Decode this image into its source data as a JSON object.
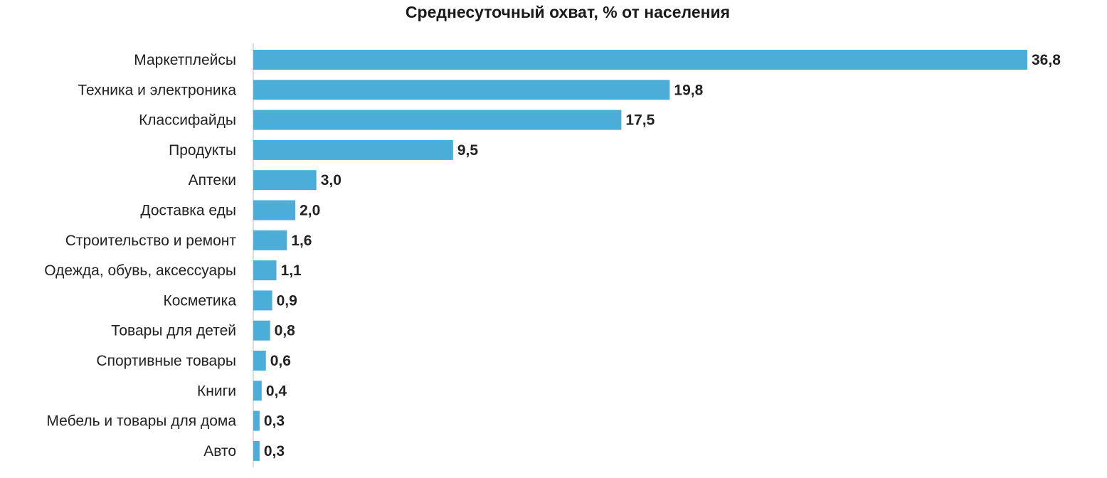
{
  "chart_data": {
    "type": "bar",
    "orientation": "horizontal",
    "title": "Среднесуточный охват, % от населения",
    "xlabel": "",
    "ylabel": "",
    "categories": [
      "Маркетплейсы",
      "Техника и электроника",
      "Классифайды",
      "Продукты",
      "Аптеки",
      "Доставка еды",
      "Строительство и ремонт",
      "Одежда, обувь, аксессуары",
      "Косметика",
      "Товары для детей",
      "Спортивные товары",
      "Книги",
      "Мебель и товары для дома",
      "Авто"
    ],
    "values": [
      36.8,
      19.8,
      17.5,
      9.5,
      3.0,
      2.0,
      1.6,
      1.1,
      0.9,
      0.8,
      0.6,
      0.4,
      0.3,
      0.3
    ],
    "value_labels": [
      "36,8",
      "19,8",
      "17,5",
      "9,5",
      "3,0",
      "2,0",
      "1,6",
      "1,1",
      "0,9",
      "0,8",
      "0,6",
      "0,4",
      "0,3",
      "0,3"
    ],
    "xlim": [
      0,
      36.8
    ],
    "grid": false,
    "legend": "none",
    "bar_color": "#4BAED8"
  }
}
